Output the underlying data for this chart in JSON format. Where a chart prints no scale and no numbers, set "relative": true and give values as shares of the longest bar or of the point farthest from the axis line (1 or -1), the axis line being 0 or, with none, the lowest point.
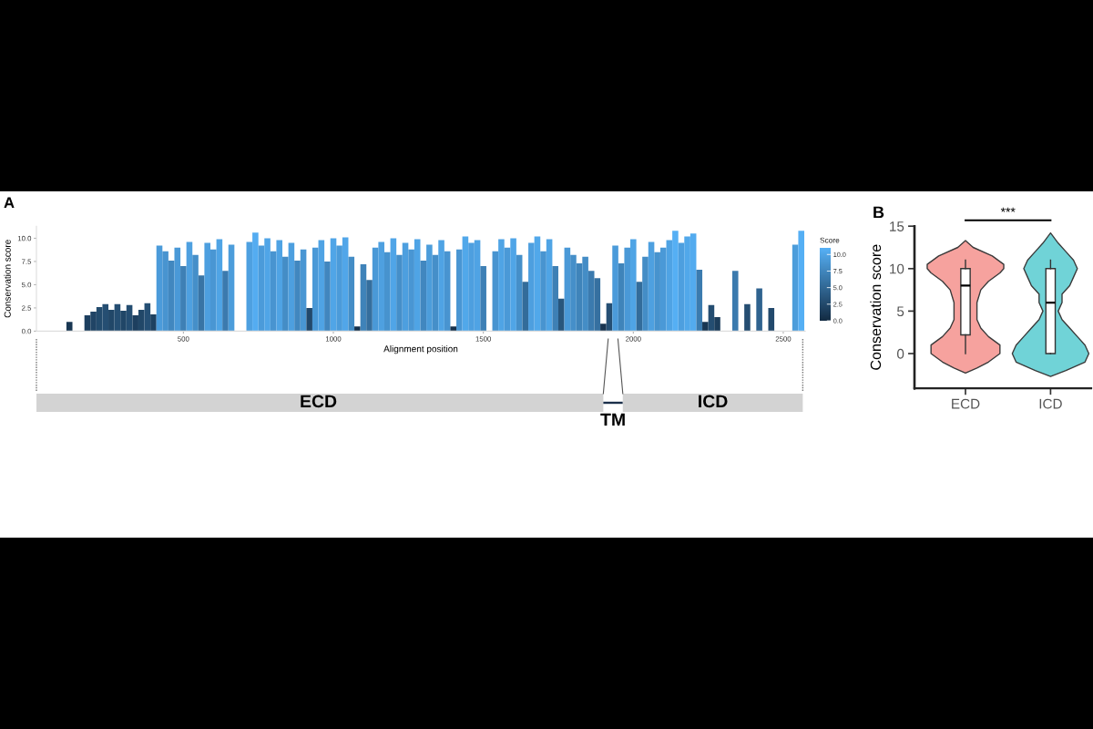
{
  "chart_data": [
    {
      "type": "bar",
      "title": "A",
      "xlabel": "Alignment position",
      "ylabel": "Conservation score",
      "clabel": "Score",
      "clim": [
        0,
        11
      ],
      "cticks": [
        {
          "value": 0,
          "label": "0.0"
        },
        2.5,
        {
          "value": 5,
          "label": "5.0"
        },
        7.5,
        {
          "value": 10,
          "label": "10.0"
        }
      ],
      "xlim": [
        10,
        2573
      ],
      "xticks": [
        500,
        1000,
        1500,
        2000,
        2500
      ],
      "ylim": [
        0,
        11.3
      ],
      "yticks": [
        {
          "value": 0,
          "label": "0.0"
        },
        2.5,
        {
          "value": 5,
          "label": "5.0"
        },
        7.5,
        {
          "value": 10,
          "label": "10.0"
        }
      ],
      "x": [
        20,
        40,
        60,
        80,
        100,
        120,
        140,
        160,
        180,
        200,
        220,
        240,
        260,
        280,
        300,
        320,
        340,
        360,
        380,
        400,
        420,
        440,
        460,
        480,
        500,
        520,
        540,
        560,
        580,
        600,
        620,
        640,
        660,
        680,
        700,
        720,
        740,
        760,
        780,
        800,
        820,
        840,
        860,
        880,
        900,
        920,
        940,
        960,
        980,
        1000,
        1020,
        1040,
        1060,
        1080,
        1100,
        1120,
        1140,
        1160,
        1180,
        1200,
        1220,
        1240,
        1260,
        1280,
        1300,
        1320,
        1340,
        1360,
        1380,
        1400,
        1420,
        1440,
        1460,
        1480,
        1500,
        1520,
        1540,
        1560,
        1580,
        1600,
        1620,
        1640,
        1660,
        1680,
        1700,
        1720,
        1740,
        1760,
        1780,
        1800,
        1820,
        1840,
        1860,
        1880,
        1900,
        1920,
        1940,
        1960,
        1980,
        2000,
        2020,
        2040,
        2060,
        2080,
        2100,
        2120,
        2140,
        2160,
        2180,
        2200,
        2220,
        2240,
        2260,
        2280,
        2300,
        2320,
        2340,
        2360,
        2380,
        2400,
        2420,
        2440,
        2460,
        2480,
        2500,
        2520,
        2540,
        2560
      ],
      "values": [
        0,
        0,
        0,
        0,
        0,
        1.0,
        0,
        0,
        1.7,
        2.1,
        2.6,
        2.9,
        2.3,
        2.9,
        2.2,
        2.8,
        1.7,
        2.3,
        3.0,
        1.8,
        9.2,
        8.6,
        7.6,
        9.0,
        7.0,
        9.6,
        8.2,
        6.0,
        9.5,
        8.8,
        9.9,
        6.5,
        9.3,
        0,
        0,
        9.6,
        10.6,
        9.2,
        10.0,
        8.6,
        9.8,
        8.0,
        9.5,
        7.6,
        8.8,
        2.5,
        9.0,
        9.8,
        7.5,
        10.0,
        9.2,
        10.1,
        8.0,
        0.5,
        7.2,
        5.5,
        9.0,
        9.6,
        8.5,
        10.0,
        8.2,
        9.5,
        8.8,
        9.9,
        7.6,
        9.3,
        8.2,
        9.8,
        8.6,
        0.5,
        8.8,
        10.2,
        9.5,
        9.8,
        7.0,
        0,
        8.6,
        9.9,
        9.0,
        10.0,
        8.2,
        5.3,
        9.5,
        10.2,
        8.6,
        9.9,
        7.0,
        3.5,
        9.0,
        8.2,
        7.3,
        8.0,
        6.5,
        5.7,
        0.8,
        3.0,
        9.2,
        7.3,
        9.0,
        9.9,
        5.3,
        8.0,
        9.6,
        8.5,
        9.0,
        9.8,
        10.8,
        9.5,
        10.2,
        10.5,
        6.6,
        1.0,
        2.8,
        1.5,
        0,
        0,
        6.5,
        0,
        2.9,
        0,
        4.6,
        0,
        2.5,
        0,
        0,
        0,
        9.3,
        10.8
      ]
    },
    {
      "type": "bar",
      "orientation": "horizontal",
      "stacked": true,
      "categories": [
        null
      ],
      "xlim": [
        10,
        2573
      ],
      "tick_labels": false,
      "series": [
        {
          "name": "ECD",
          "color": "#d3d3d3",
          "values": [
            1900
          ]
        },
        {
          "name": "TM",
          "color": "#1b2f4a",
          "values": [
            65
          ]
        },
        {
          "name": "ICD",
          "color": "#d3d3d3",
          "values": [
            600
          ]
        }
      ]
    },
    {
      "type": "box",
      "title": "B",
      "categories": [
        "ECD",
        "ICD"
      ],
      "ylabel": "Conservation score",
      "ylim": [
        -4.1,
        15
      ],
      "yticks": [
        0,
        5,
        10,
        15
      ],
      "boxes": [
        {
          "low": 0,
          "q1": 2.2,
          "median": 8,
          "q3": 10,
          "high": 11
        },
        {
          "low": 0,
          "q1": 0,
          "median": 6,
          "q3": 10,
          "high": 11
        }
      ],
      "annotations": [
        "***"
      ]
    },
    {
      "type": "area",
      "orientation": "horizontal",
      "relative": true,
      "tick_labels": false,
      "ylim": [
        -4.1,
        15
      ],
      "color": "#f6a29e",
      "x": [
        -2.3,
        -1.7,
        -1,
        0,
        1,
        2,
        3,
        4,
        5,
        6,
        7.5,
        8.5,
        9.5,
        10,
        10.5,
        11.5,
        12.5,
        13.3
      ],
      "values": [
        0,
        0.3,
        0.6,
        0.9,
        0.9,
        0.6,
        0.4,
        0.3,
        0.3,
        0.3,
        0.4,
        0.6,
        0.9,
        1.0,
        1.0,
        0.7,
        0.2,
        0
      ]
    },
    {
      "type": "area",
      "orientation": "horizontal",
      "relative": true,
      "tick_labels": false,
      "ylim": [
        -4.1,
        15
      ],
      "color": "#70d3d7",
      "x": [
        -2.7,
        -2,
        -1,
        0,
        1,
        2,
        3,
        4,
        5,
        6,
        7,
        8,
        9,
        10,
        11,
        12,
        13,
        14.2
      ],
      "values": [
        0,
        0.4,
        0.9,
        1.0,
        0.9,
        0.7,
        0.5,
        0.3,
        0.2,
        0.3,
        0.3,
        0.5,
        0.6,
        0.7,
        0.6,
        0.4,
        0.2,
        0
      ]
    }
  ]
}
